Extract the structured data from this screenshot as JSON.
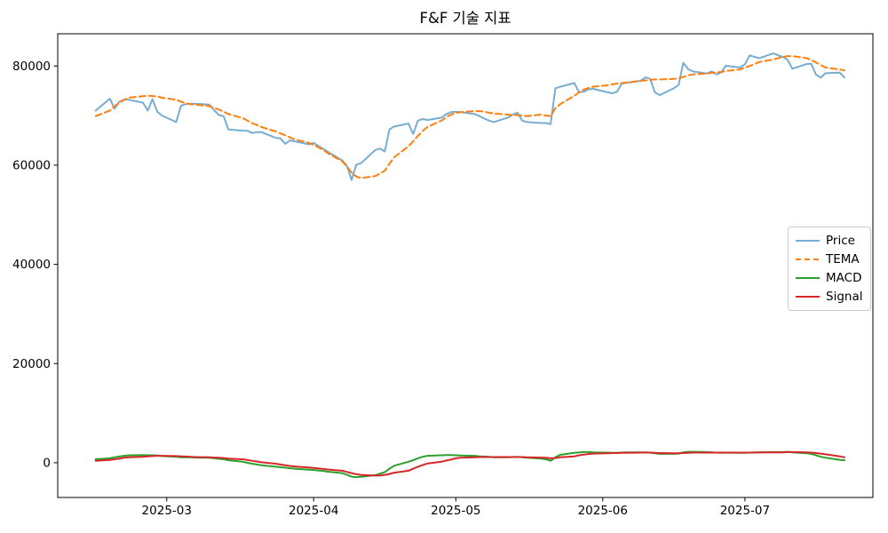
{
  "title": "F&F 기술 지표",
  "axes": {
    "x_tick_labels": [
      "2025-03",
      "2025-04",
      "2025-05",
      "2025-06",
      "2025-07"
    ],
    "x_tick_dates": [
      "2025-03-01",
      "2025-04-01",
      "2025-05-01",
      "2025-06-01",
      "2025-07-01"
    ],
    "y_tick_labels": [
      "0",
      "20000",
      "40000",
      "60000",
      "80000"
    ],
    "y_tick_values": [
      0,
      20000,
      40000,
      60000,
      80000
    ],
    "xlim": [
      "2025-02-06",
      "2025-07-28"
    ],
    "ylim": [
      -7000,
      86500
    ],
    "grid": false
  },
  "chart_data": {
    "type": "line",
    "title": "F&F 기술 지표",
    "xlabel": "",
    "ylabel": "",
    "legend_position": "center right",
    "grid": false,
    "ylim": [
      -7000,
      86500
    ],
    "x": [
      "2025-02-14",
      "2025-02-17",
      "2025-02-18",
      "2025-02-19",
      "2025-02-20",
      "2025-02-21",
      "2025-02-24",
      "2025-02-25",
      "2025-02-26",
      "2025-02-27",
      "2025-02-28",
      "2025-03-03",
      "2025-03-04",
      "2025-03-05",
      "2025-03-06",
      "2025-03-07",
      "2025-03-10",
      "2025-03-11",
      "2025-03-12",
      "2025-03-13",
      "2025-03-14",
      "2025-03-17",
      "2025-03-18",
      "2025-03-19",
      "2025-03-20",
      "2025-03-21",
      "2025-03-24",
      "2025-03-25",
      "2025-03-26",
      "2025-03-27",
      "2025-03-28",
      "2025-03-31",
      "2025-04-01",
      "2025-04-02",
      "2025-04-03",
      "2025-04-04",
      "2025-04-07",
      "2025-04-08",
      "2025-04-09",
      "2025-04-10",
      "2025-04-11",
      "2025-04-14",
      "2025-04-15",
      "2025-04-16",
      "2025-04-17",
      "2025-04-18",
      "2025-04-21",
      "2025-04-22",
      "2025-04-23",
      "2025-04-24",
      "2025-04-25",
      "2025-04-28",
      "2025-04-29",
      "2025-04-30",
      "2025-05-01",
      "2025-05-02",
      "2025-05-05",
      "2025-05-06",
      "2025-05-07",
      "2025-05-08",
      "2025-05-09",
      "2025-05-12",
      "2025-05-13",
      "2025-05-14",
      "2025-05-15",
      "2025-05-16",
      "2025-05-19",
      "2025-05-20",
      "2025-05-21",
      "2025-05-22",
      "2025-05-23",
      "2025-05-26",
      "2025-05-27",
      "2025-05-28",
      "2025-05-29",
      "2025-05-30",
      "2025-06-02",
      "2025-06-03",
      "2025-06-04",
      "2025-06-05",
      "2025-06-06",
      "2025-06-09",
      "2025-06-10",
      "2025-06-11",
      "2025-06-12",
      "2025-06-13",
      "2025-06-16",
      "2025-06-17",
      "2025-06-18",
      "2025-06-19",
      "2025-06-20",
      "2025-06-23",
      "2025-06-24",
      "2025-06-25",
      "2025-06-26",
      "2025-06-27",
      "2025-06-30",
      "2025-07-01",
      "2025-07-02",
      "2025-07-03",
      "2025-07-04",
      "2025-07-07",
      "2025-07-08",
      "2025-07-09",
      "2025-07-10",
      "2025-07-11",
      "2025-07-14",
      "2025-07-15",
      "2025-07-16",
      "2025-07-17",
      "2025-07-18",
      "2025-07-21",
      "2025-07-22"
    ],
    "series": [
      {
        "name": "Price",
        "color": "#78add2",
        "style": "solid",
        "values": [
          71000,
          73400,
          71400,
          72800,
          73200,
          73200,
          72600,
          71000,
          73300,
          70800,
          70000,
          68700,
          72000,
          72300,
          72400,
          72400,
          72200,
          71100,
          70100,
          69900,
          67200,
          66950,
          66950,
          66500,
          66650,
          66650,
          65500,
          65400,
          64300,
          65000,
          64800,
          64200,
          64500,
          63900,
          63300,
          62700,
          61000,
          59900,
          57000,
          60100,
          60400,
          63050,
          63350,
          62750,
          67200,
          67800,
          68400,
          66300,
          69000,
          69300,
          69100,
          69600,
          70300,
          70700,
          70800,
          70700,
          70300,
          69900,
          69400,
          69000,
          68700,
          69600,
          70200,
          70600,
          69000,
          68700,
          68500,
          68500,
          68300,
          75500,
          75800,
          76550,
          74700,
          74800,
          75300,
          75400,
          74700,
          74500,
          74800,
          76450,
          76600,
          77000,
          77700,
          77400,
          74700,
          74100,
          75500,
          76200,
          80650,
          79400,
          78900,
          78500,
          78900,
          78300,
          78700,
          80050,
          79700,
          80350,
          82150,
          81850,
          81550,
          82550,
          82150,
          81850,
          81250,
          79450,
          80400,
          80450,
          78250,
          77650,
          78550,
          78650,
          77700
        ]
      },
      {
        "name": "TEMA",
        "color": "#ff7f0e",
        "style": "dashed",
        "values": [
          69900,
          71000,
          71900,
          72600,
          73200,
          73600,
          73900,
          74000,
          73950,
          73850,
          73600,
          73200,
          72800,
          72500,
          72300,
          72200,
          71900,
          71600,
          71200,
          70800,
          70300,
          69500,
          69000,
          68500,
          68100,
          67700,
          66800,
          66400,
          66000,
          65600,
          65200,
          64500,
          64100,
          63600,
          63100,
          62400,
          60800,
          59800,
          58500,
          57700,
          57400,
          57800,
          58300,
          58900,
          60300,
          61600,
          63800,
          64800,
          65900,
          66900,
          67700,
          69000,
          69700,
          70200,
          70500,
          70700,
          70900,
          70900,
          70800,
          70600,
          70400,
          70200,
          70100,
          70100,
          70000,
          69900,
          70200,
          70000,
          69900,
          71500,
          72300,
          74000,
          74700,
          75250,
          75600,
          75850,
          76100,
          76300,
          76450,
          76550,
          76650,
          77000,
          77100,
          77200,
          77300,
          77300,
          77400,
          77500,
          77800,
          78100,
          78300,
          78500,
          78600,
          78700,
          78800,
          79000,
          79300,
          79700,
          80000,
          80400,
          80800,
          81300,
          81600,
          81800,
          82000,
          82000,
          81600,
          81200,
          80700,
          80200,
          79700,
          79300,
          79100
        ]
      },
      {
        "name": "MACD",
        "color": "#2ca02c",
        "style": "solid",
        "values": [
          700,
          900,
          1100,
          1250,
          1400,
          1500,
          1550,
          1500,
          1500,
          1450,
          1350,
          1200,
          1100,
          1100,
          1100,
          1050,
          1000,
          900,
          800,
          700,
          500,
          200,
          0,
          -200,
          -350,
          -500,
          -800,
          -900,
          -1000,
          -1100,
          -1200,
          -1400,
          -1450,
          -1550,
          -1650,
          -1800,
          -2100,
          -2400,
          -2800,
          -2900,
          -2850,
          -2500,
          -2200,
          -1900,
          -1200,
          -600,
          200,
          500,
          900,
          1200,
          1400,
          1500,
          1550,
          1550,
          1500,
          1450,
          1400,
          1300,
          1250,
          1200,
          1100,
          1100,
          1150,
          1200,
          1100,
          1000,
          850,
          700,
          400,
          1100,
          1600,
          2000,
          2100,
          2150,
          2150,
          2100,
          2050,
          2000,
          2000,
          2050,
          2100,
          2100,
          2100,
          2050,
          1900,
          1800,
          1800,
          1850,
          2100,
          2200,
          2200,
          2150,
          2100,
          2050,
          2000,
          2050,
          2000,
          2000,
          2050,
          2100,
          2100,
          2150,
          2150,
          2150,
          2200,
          2100,
          1900,
          1800,
          1500,
          1200,
          1000,
          600,
          500
        ]
      },
      {
        "name": "Signal",
        "color": "#d62728",
        "style": "solid",
        "values": [
          400,
          550,
          700,
          850,
          1000,
          1100,
          1200,
          1300,
          1350,
          1400,
          1400,
          1350,
          1300,
          1250,
          1200,
          1150,
          1100,
          1050,
          1000,
          950,
          850,
          700,
          550,
          400,
          250,
          100,
          -200,
          -350,
          -500,
          -650,
          -750,
          -950,
          -1050,
          -1150,
          -1250,
          -1350,
          -1600,
          -1850,
          -2100,
          -2300,
          -2450,
          -2600,
          -2550,
          -2450,
          -2250,
          -2000,
          -1600,
          -1200,
          -800,
          -450,
          -150,
          200,
          450,
          650,
          900,
          1000,
          1100,
          1150,
          1150,
          1150,
          1150,
          1150,
          1150,
          1150,
          1150,
          1100,
          1050,
          1000,
          900,
          950,
          1100,
          1300,
          1500,
          1650,
          1750,
          1850,
          1900,
          1950,
          1950,
          2000,
          2000,
          2050,
          2050,
          2050,
          2000,
          1950,
          1900,
          1900,
          1950,
          2000,
          2050,
          2050,
          2050,
          2050,
          2050,
          2050,
          2050,
          2050,
          2050,
          2050,
          2100,
          2100,
          2100,
          2100,
          2150,
          2150,
          2100,
          2050,
          1950,
          1850,
          1700,
          1300,
          1100
        ]
      }
    ]
  }
}
